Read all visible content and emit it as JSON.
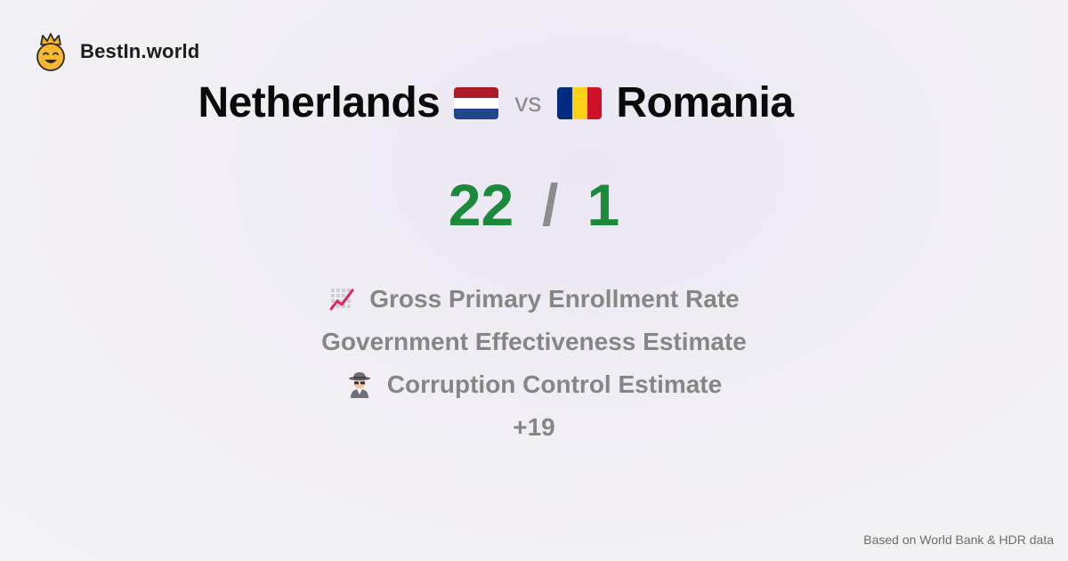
{
  "brand": {
    "name": "BestIn.world",
    "icon": "crown-smiley-icon"
  },
  "comparison": {
    "country_a": {
      "name": "Netherlands",
      "flag_colors": [
        "#ae1c28",
        "#ffffff",
        "#21468b"
      ]
    },
    "vs_label": "vs",
    "country_b": {
      "name": "Romania",
      "flag_colors": [
        "#002b7f",
        "#fcd116",
        "#ce1126"
      ]
    }
  },
  "score": {
    "a": "22",
    "separator": "/",
    "b": "1",
    "color": "#1c8a3b"
  },
  "metrics": [
    {
      "icon": "chart-increasing-icon",
      "label": "Gross Primary Enrollment Rate"
    },
    {
      "icon": "",
      "label": "Government Effectiveness Estimate"
    },
    {
      "icon": "detective-icon",
      "label": "Corruption Control Estimate"
    },
    {
      "icon": "",
      "label": "+19"
    }
  ],
  "footer": {
    "source": "Based on World Bank & HDR data"
  }
}
